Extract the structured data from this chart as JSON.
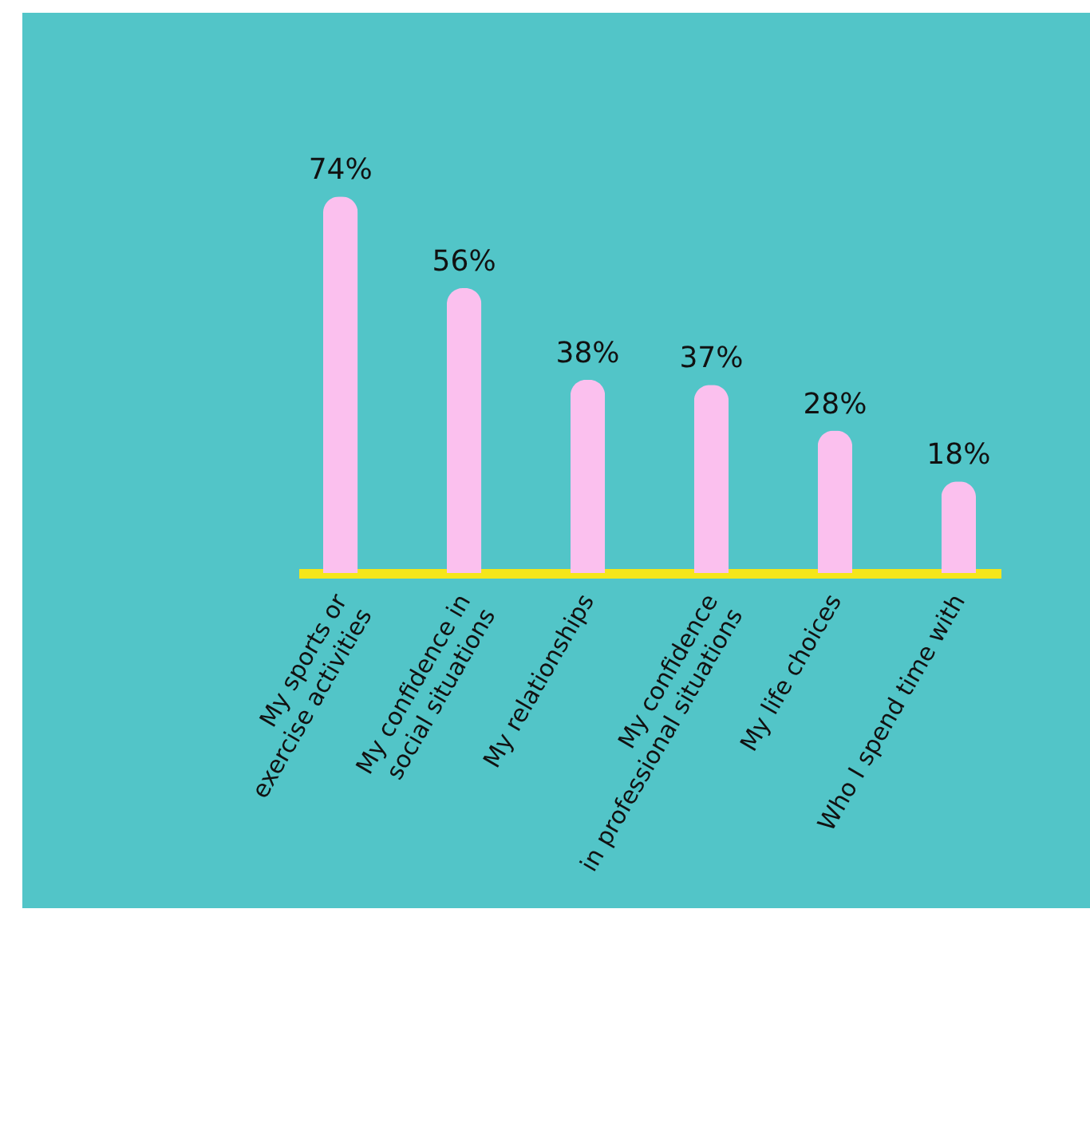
{
  "chart_data": {
    "type": "bar",
    "categories": [
      "My sports or\nexercise activities",
      "My confidence in\nsocial situations",
      "My relationships",
      "My confidence\nin professional situations",
      "My life choices",
      "Who I spend time with"
    ],
    "values": [
      74,
      56,
      38,
      37,
      28,
      18
    ],
    "color": "#fbc0ee",
    "value_labels": [
      "74%",
      "56%",
      "38%",
      "37%",
      "28%",
      "18%"
    ]
  }
}
